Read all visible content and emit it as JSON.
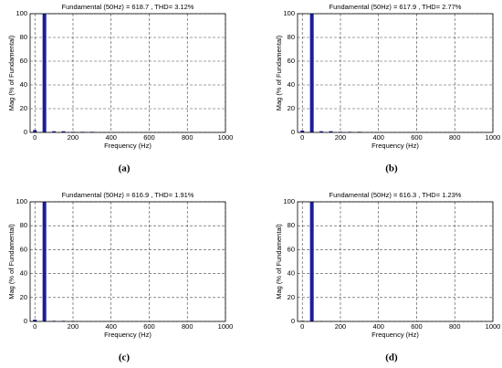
{
  "chart_data": [
    {
      "type": "bar",
      "title": "Fundamental (50Hz) = 618.7 , THD= 3.12%",
      "xlabel": "Frequency (Hz)",
      "ylabel": "Mag (% of Fundamental)",
      "caption": "(a)",
      "x": [
        0,
        50,
        100,
        150,
        200,
        250,
        300
      ],
      "values": [
        2,
        100,
        1,
        1,
        0.5,
        0.5,
        0.5
      ],
      "color": "#1c1c9c",
      "xlim": [
        -25,
        1000
      ],
      "xticks": [
        0,
        200,
        400,
        600,
        800,
        1000
      ],
      "ylim": [
        0,
        100
      ],
      "yticks": [
        0,
        20,
        40,
        60,
        80,
        100
      ],
      "grid": true
    },
    {
      "type": "bar",
      "title": "Fundamental (50Hz) = 617.9 , THD= 2.77%",
      "xlabel": "Frequency (Hz)",
      "ylabel": "Mag (% of Fundamental)",
      "caption": "(b)",
      "x": [
        0,
        50,
        100,
        150,
        200,
        250,
        300
      ],
      "values": [
        1.5,
        100,
        1,
        1,
        0.5,
        0.5,
        0.5
      ],
      "color": "#1c1c9c",
      "xlim": [
        -25,
        1000
      ],
      "xticks": [
        0,
        200,
        400,
        600,
        800,
        1000
      ],
      "ylim": [
        0,
        100
      ],
      "yticks": [
        0,
        20,
        40,
        60,
        80,
        100
      ],
      "grid": true
    },
    {
      "type": "bar",
      "title": "Fundamental (50Hz) = 616.9 , THD= 1.91%",
      "xlabel": "Frequency (Hz)",
      "ylabel": "Mag (% of Fundamental)",
      "caption": "(c)",
      "x": [
        0,
        50,
        100,
        150,
        200
      ],
      "values": [
        1.5,
        100,
        0.5,
        0.5,
        0.3
      ],
      "color": "#1c1c9c",
      "xlim": [
        -25,
        1000
      ],
      "xticks": [
        0,
        200,
        400,
        600,
        800,
        1000
      ],
      "ylim": [
        0,
        100
      ],
      "yticks": [
        0,
        20,
        40,
        60,
        80,
        100
      ],
      "grid": true
    },
    {
      "type": "bar",
      "title": "Fundamental (50Hz) = 616.3 , THD= 1.23%",
      "xlabel": "Frequency (Hz)",
      "ylabel": "Mag (% of Fundamental)",
      "caption": "(d)",
      "x": [
        0,
        50,
        100,
        150
      ],
      "values": [
        0.5,
        100,
        0.3,
        0.3
      ],
      "color": "#1c1c9c",
      "xlim": [
        -25,
        1000
      ],
      "xticks": [
        0,
        200,
        400,
        600,
        800,
        1000
      ],
      "ylim": [
        0,
        100
      ],
      "yticks": [
        0,
        20,
        40,
        60,
        80,
        100
      ],
      "grid": true
    }
  ]
}
